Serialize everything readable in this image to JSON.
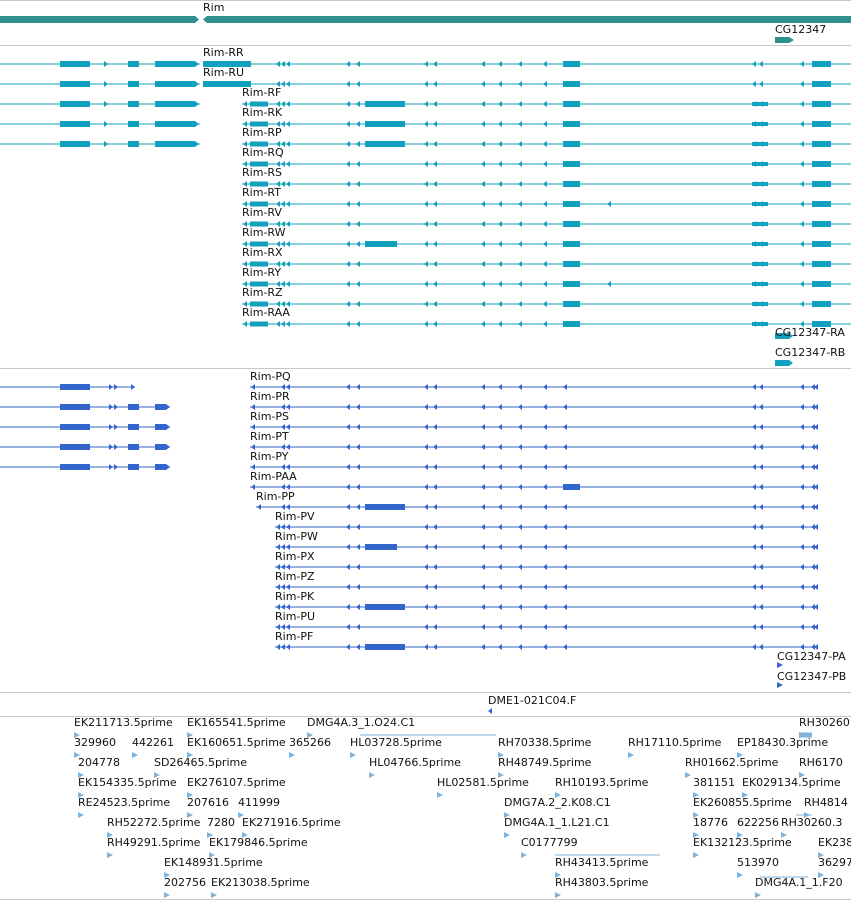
{
  "colors": {
    "gene": "#2f8f8f",
    "transcript_a": "#12a0bf",
    "transcript_b": "#3366cc",
    "est": "#7fb3da",
    "divider": "#c8c8c8"
  },
  "gene_track": {
    "gene_label": "Rim",
    "gene2_label": "CG12347"
  },
  "transcripts_a": [
    {
      "label": "Rim-RR"
    },
    {
      "label": "Rim-RU"
    },
    {
      "label": "Rim-RF"
    },
    {
      "label": "Rim-RK"
    },
    {
      "label": "Rim-RP"
    },
    {
      "label": "Rim-RQ"
    },
    {
      "label": "Rim-RS"
    },
    {
      "label": "Rim-RT"
    },
    {
      "label": "Rim-RV"
    },
    {
      "label": "Rim-RW"
    },
    {
      "label": "Rim-RX"
    },
    {
      "label": "Rim-RY"
    },
    {
      "label": "Rim-RZ"
    },
    {
      "label": "Rim-RAA"
    },
    {
      "label": "CG12347-RA"
    },
    {
      "label": "CG12347-RB"
    }
  ],
  "transcripts_b": [
    {
      "label": "Rim-PQ"
    },
    {
      "label": "Rim-PR"
    },
    {
      "label": "Rim-PS"
    },
    {
      "label": "Rim-PT"
    },
    {
      "label": "Rim-PY"
    },
    {
      "label": "Rim-PAA"
    },
    {
      "label": "Rim-PP"
    },
    {
      "label": "Rim-PV"
    },
    {
      "label": "Rim-PW"
    },
    {
      "label": "Rim-PX"
    },
    {
      "label": "Rim-PZ"
    },
    {
      "label": "Rim-PK"
    },
    {
      "label": "Rim-PU"
    },
    {
      "label": "Rim-PF"
    },
    {
      "label": "CG12347-PA"
    },
    {
      "label": "CG12347-PB"
    }
  ],
  "probe_track": {
    "label": "DME1-021C04.F"
  },
  "est_track": {
    "labels": [
      "EK211713.5prime",
      "EK165541.5prime",
      "DMG4A.3_1.O24.C1",
      "RH30260",
      "329960",
      "442261",
      "EK160651.5prime",
      "365266",
      "HL03728.5prime",
      "RH70338.5prime",
      "RH17110.5prime",
      "EP18430.3prime",
      "204778",
      "SD26465.5prime",
      "HL04766.5prime",
      "RH48749.5prime",
      "RH01662.5prime",
      "RH6170",
      "EK154335.5prime",
      "EK276107.5prime",
      "HL02581.5prime",
      "RH10193.5prime",
      "381151",
      "EK029134.5prime",
      "RE24523.5prime",
      "207616",
      "411999",
      "DMG7A.2_2.K08.C1",
      "EK260855.5prime",
      "RH4814",
      "RH52272.5prime",
      "7280",
      "EK271916.5prime",
      "DMG4A.1_1.L21.C1",
      "18776",
      "622256",
      "RH30260.3",
      "RH49291.5prime",
      "EK179846.5prime",
      "C0177799",
      "EK132123.5prime",
      "EK238",
      "EK148931.5prime",
      "RH43413.5prime",
      "513970",
      "36297",
      "202756",
      "EK213038.5prime",
      "RH43803.5prime",
      "DMG4A.1_1.F20"
    ]
  }
}
